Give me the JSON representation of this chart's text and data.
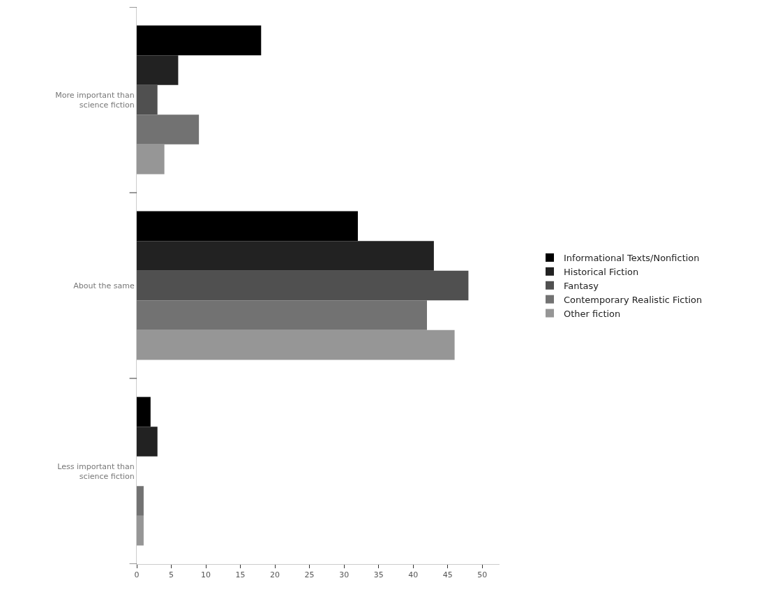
{
  "chart_data": {
    "type": "bar",
    "orientation": "horizontal",
    "categories": [
      "More important than science fiction",
      "About the same",
      "Less important than science fiction"
    ],
    "series": [
      {
        "name": "Informational Texts/Nonfiction",
        "color": "#000000",
        "values": [
          18,
          32,
          2
        ]
      },
      {
        "name": "Historical Fiction",
        "color": "#222222",
        "values": [
          6,
          43,
          3
        ]
      },
      {
        "name": "Fantasy",
        "color": "#505050",
        "values": [
          3,
          48,
          0
        ]
      },
      {
        "name": "Contemporary Realistic Fiction",
        "color": "#727272",
        "values": [
          9,
          42,
          1
        ]
      },
      {
        "name": "Other fiction",
        "color": "#969696",
        "values": [
          4,
          46,
          1
        ]
      }
    ],
    "xlim": [
      0,
      52.5
    ],
    "xticks": [
      0,
      5,
      10,
      15,
      20,
      25,
      30,
      35,
      40,
      45,
      50
    ],
    "legend": "right"
  }
}
